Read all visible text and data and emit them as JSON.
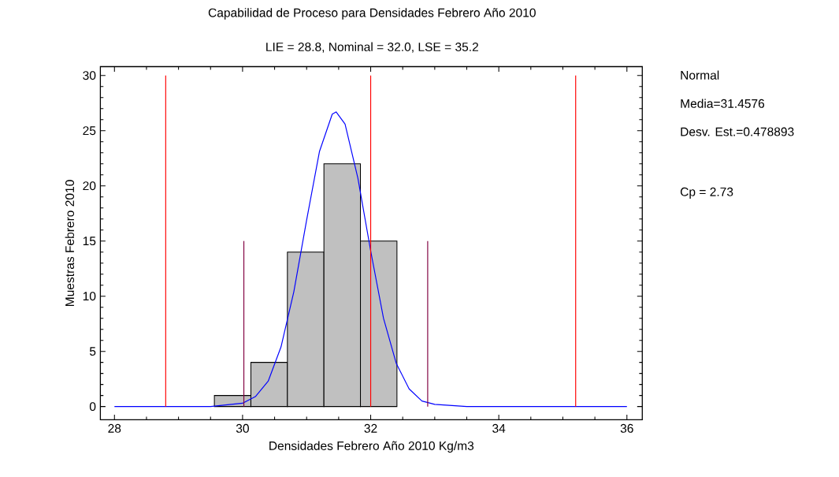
{
  "chart_data": {
    "type": "histogram",
    "title": "Capabilidad de Proceso para  Densidades Febrero Año 2010",
    "subtitle": "LIE = 28.8, Nominal = 32.0, LSE = 35.2",
    "xlabel": "Densidades Febrero Año 2010 Kg/m3",
    "ylabel": "Muestras Febrero 2010",
    "bins": [
      29.56,
      30.13,
      30.7,
      31.27,
      31.84,
      32.41
    ],
    "values": [
      1,
      4,
      14,
      22,
      15
    ],
    "color": "#c0c0c0",
    "series": [
      {
        "type": "line",
        "color": "#0000ff",
        "x": [
          28,
          29,
          29.5,
          30,
          30.2,
          30.4,
          30.6,
          30.8,
          31.0,
          31.2,
          31.4,
          31.46,
          31.6,
          31.8,
          32.0,
          32.2,
          32.4,
          32.6,
          32.8,
          33.0,
          33.5,
          34,
          35,
          36
        ],
        "values": [
          0,
          0,
          0,
          0.3,
          0.9,
          2.3,
          5.4,
          10.4,
          16.9,
          23.1,
          26.5,
          26.7,
          25.6,
          20.7,
          14.1,
          8.0,
          3.9,
          1.6,
          0.5,
          0.2,
          0,
          0,
          0,
          0
        ]
      },
      {
        "type": "line",
        "color": "#ff0000",
        "x": [
          28.8,
          28.8
        ],
        "values": [
          0,
          30
        ]
      },
      {
        "type": "line",
        "color": "#ff0000",
        "x": [
          32.0,
          32.0
        ],
        "values": [
          0,
          30
        ]
      },
      {
        "type": "line",
        "color": "#ff0000",
        "x": [
          35.2,
          35.2
        ],
        "values": [
          0,
          30
        ]
      },
      {
        "type": "line",
        "color": "#800040",
        "x": [
          30.02,
          30.02
        ],
        "values": [
          0,
          15
        ]
      },
      {
        "type": "line",
        "color": "#800040",
        "x": [
          32.89,
          32.89
        ],
        "values": [
          0,
          15
        ]
      }
    ],
    "xlim": [
      27.78,
      36.24
    ],
    "ylim": [
      -1.2,
      30.8
    ],
    "xticks": [
      28,
      30,
      32,
      34,
      36
    ],
    "yticks": [
      0,
      5,
      10,
      15,
      20,
      25,
      30
    ],
    "annotations": [
      "Normal",
      "Media=31.4576",
      "Desv. Est.=0.478893",
      "Cp = 2.73"
    ]
  }
}
